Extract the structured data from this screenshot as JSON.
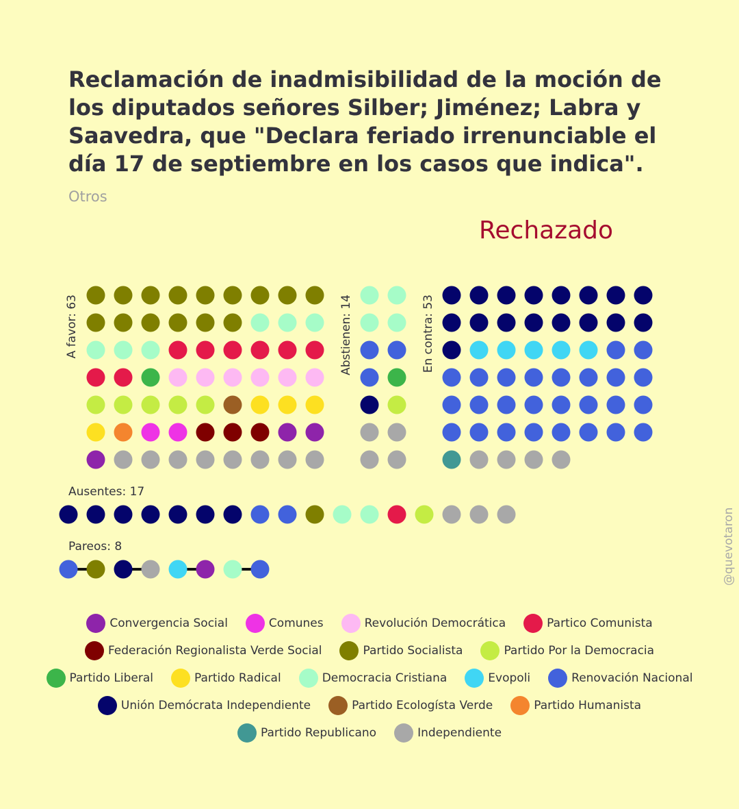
{
  "title": "Reclamación de inadmisibilidad de la moción de los diputados señores Silber; Jiménez; Labra y Saavedra, que \"Declara feriado irrenunciable el día 17 de septiembre en los casos que indica\".",
  "subtitle": "Otros",
  "result": "Rechazado",
  "handle": "@quevotaron",
  "colors": {
    "background": "#fdfcbf",
    "result": "#a50c2f"
  },
  "parties": {
    "CS": {
      "name": "Convergencia Social",
      "color": "#8e24aa"
    },
    "COM": {
      "name": "Comunes",
      "color": "#ee33e5"
    },
    "RD": {
      "name": "Revolución Democrática",
      "color": "#fdb9f3"
    },
    "PC": {
      "name": "Partico Comunista",
      "color": "#e41a4a"
    },
    "FRVS": {
      "name": "Federación Regionalista Verde Social",
      "color": "#7f0000"
    },
    "PS": {
      "name": "Partido Socialista",
      "color": "#7f7f00"
    },
    "PPD": {
      "name": "Partido Por la Democracia",
      "color": "#c4ec44"
    },
    "PL": {
      "name": "Partido Liberal",
      "color": "#3cb54a"
    },
    "PR": {
      "name": "Partido Radical",
      "color": "#fde021"
    },
    "DC": {
      "name": "Democracia Cristiana",
      "color": "#a6fcc8"
    },
    "EVO": {
      "name": "Evopoli",
      "color": "#40d6f4"
    },
    "RN": {
      "name": "Renovación Nacional",
      "color": "#4262dc"
    },
    "UDI": {
      "name": "Unión Demócrata Independiente",
      "color": "#04046b"
    },
    "PEV": {
      "name": "Partido Ecologísta Verde",
      "color": "#9b5f24"
    },
    "PH": {
      "name": "Partido Humanista",
      "color": "#f4852e"
    },
    "REP": {
      "name": "Partido Republicano",
      "color": "#419894"
    },
    "IND": {
      "name": "Independiente",
      "color": "#a8a8a8"
    }
  },
  "legend_rows": [
    [
      "CS",
      "COM",
      "RD",
      "PC"
    ],
    [
      "FRVS",
      "PS",
      "PPD"
    ],
    [
      "PL",
      "PR",
      "DC",
      "EVO",
      "RN"
    ],
    [
      "UDI",
      "PEV",
      "PH"
    ],
    [
      "REP",
      "IND"
    ]
  ],
  "chart_data": {
    "type": "dot-matrix",
    "groups": [
      {
        "key": "favor",
        "label": "A favor: 63",
        "count": 63,
        "columns": 9,
        "counts": {
          "PS": 15,
          "DC": 6,
          "PC": 8,
          "PL": 1,
          "RD": 6,
          "PPD": 5,
          "PEV": 1,
          "PR": 4,
          "PH": 1,
          "COM": 2,
          "FRVS": 3,
          "CS": 3,
          "IND": 8
        }
      },
      {
        "key": "abstienen",
        "label": "Abstienen: 14",
        "count": 14,
        "columns": 2,
        "counts": {
          "DC": 4,
          "RN": 3,
          "PL": 1,
          "UDI": 1,
          "PPD": 1,
          "IND": 4
        }
      },
      {
        "key": "contra",
        "label": "En contra: 53",
        "count": 53,
        "columns": 8,
        "counts": {
          "UDI": 17,
          "EVO": 5,
          "RN": 26,
          "REP": 1,
          "IND": 4
        }
      },
      {
        "key": "ausentes",
        "label": "Ausentes: 17",
        "count": 17,
        "counts": {
          "UDI": 7,
          "RN": 2,
          "PS": 1,
          "DC": 2,
          "PC": 1,
          "PPD": 1,
          "IND": 3
        }
      }
    ],
    "pareos": {
      "label": "Pareos: 8",
      "count": 8,
      "pairs": [
        [
          "RN",
          "PS"
        ],
        [
          "UDI",
          "IND"
        ],
        [
          "EVO",
          "CS"
        ],
        [
          "DC",
          "RN"
        ]
      ]
    }
  }
}
